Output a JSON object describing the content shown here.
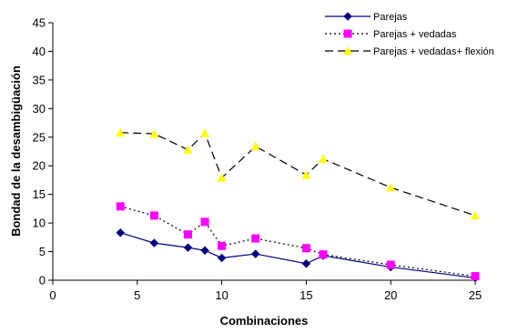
{
  "chart_data": {
    "type": "line",
    "title": "",
    "xlabel": "Combinaciones",
    "ylabel": "Bondad de la desambigüación",
    "xlim": [
      0,
      25
    ],
    "ylim": [
      0,
      45
    ],
    "xticks": [
      "0",
      "5",
      "10",
      "15",
      "20",
      "25"
    ],
    "yticks": [
      "0",
      "5",
      "10",
      "15",
      "20",
      "25",
      "30",
      "35",
      "40",
      "45"
    ],
    "grid": false,
    "legend_position": "top-right",
    "series": [
      {
        "name": "Parejas",
        "color": "#000080",
        "marker": "diamond",
        "marker_color": "#000080",
        "line_style": "solid",
        "x": [
          4,
          6,
          8,
          9,
          10,
          12,
          15,
          16,
          20,
          25
        ],
        "y": [
          8.3,
          6.5,
          5.7,
          5.2,
          3.9,
          4.6,
          2.9,
          4.3,
          2.3,
          0.4
        ]
      },
      {
        "name": "Parejas + vedadas",
        "color": "#000000",
        "marker": "square",
        "marker_color": "#ff00ff",
        "line_style": "dotted",
        "x": [
          4,
          6,
          8,
          9,
          10,
          12,
          15,
          16,
          20,
          25
        ],
        "y": [
          12.9,
          11.3,
          8.0,
          10.2,
          6.0,
          7.3,
          5.6,
          4.5,
          2.7,
          0.7
        ]
      },
      {
        "name": "Parejas + vedadas+ flexión",
        "color": "#000000",
        "marker": "triangle",
        "marker_color": "#ffff00",
        "line_style": "dashed",
        "x": [
          4,
          6,
          8,
          9,
          10,
          12,
          15,
          16,
          20,
          25
        ],
        "y": [
          25.8,
          25.6,
          22.8,
          25.7,
          17.9,
          23.4,
          18.4,
          21.2,
          16.2,
          11.3
        ]
      }
    ]
  }
}
